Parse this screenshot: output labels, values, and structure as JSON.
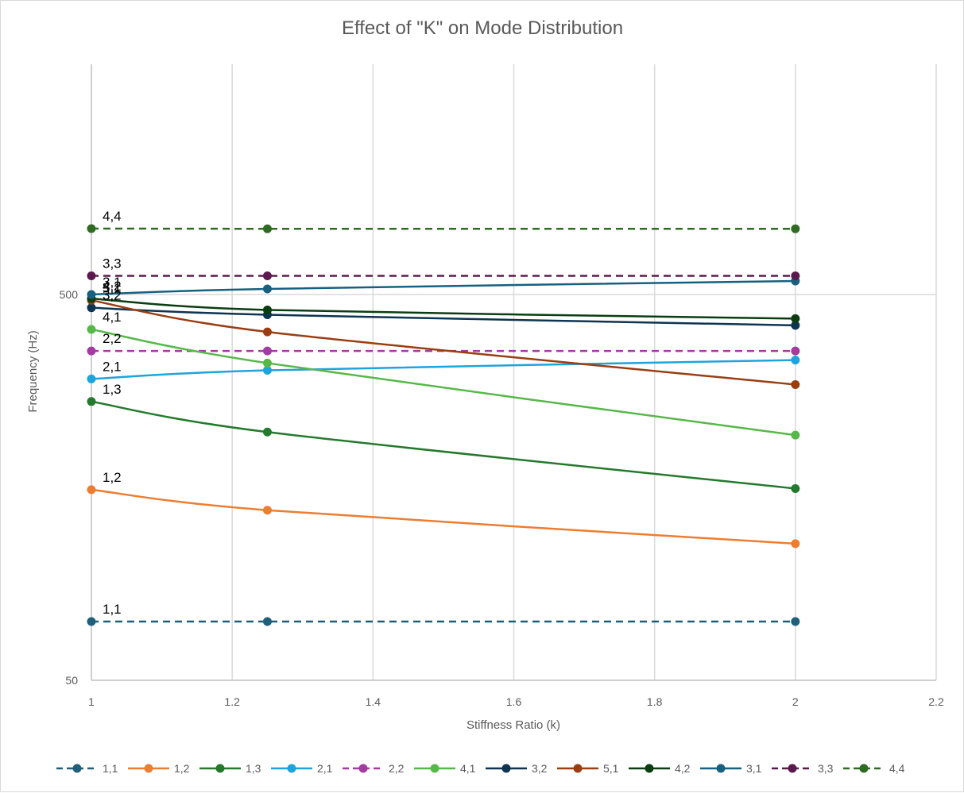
{
  "chart_data": {
    "type": "line",
    "title": "Effect of \"K\" on Mode Distribution",
    "xlabel": "Stiffness Ratio (k)",
    "ylabel": "Frequency (Hz)",
    "xlim": [
      1,
      2.2
    ],
    "x_ticks": [
      "1",
      "1.2",
      "1.4",
      "1.6",
      "1.8",
      "2",
      "2.2"
    ],
    "y_scale": "log",
    "ylim": [
      50,
      5000
    ],
    "y_ticks": [
      "50",
      "500"
    ],
    "grid": true,
    "legend_position": "bottom",
    "x": [
      1,
      1.25,
      2
    ],
    "series": [
      {
        "name": "1,1",
        "values": [
          71,
          71,
          71
        ],
        "color": "#1f5f7a",
        "dashed": true,
        "label": "1,1"
      },
      {
        "name": "1,2",
        "values": [
          156,
          138,
          113
        ],
        "color": "#ed7d31",
        "dashed": false,
        "label": "1,2"
      },
      {
        "name": "1,3",
        "values": [
          264,
          220,
          157
        ],
        "color": "#237a2c",
        "dashed": false,
        "label": "1,3"
      },
      {
        "name": "2,1",
        "values": [
          302,
          318,
          338
        ],
        "color": "#1ea4dc",
        "dashed": false,
        "label": "2,1"
      },
      {
        "name": "2,2",
        "values": [
          357,
          357,
          357
        ],
        "color": "#a33ba0",
        "dashed": true,
        "label": "2,2"
      },
      {
        "name": "4,1",
        "values": [
          406,
          332,
          216
        ],
        "color": "#57b84a",
        "dashed": false,
        "label": "4,1"
      },
      {
        "name": "3,2",
        "values": [
          462,
          443,
          416
        ],
        "color": "#0d3450",
        "dashed": false,
        "label": "3,2"
      },
      {
        "name": "5,1",
        "values": [
          483,
          400,
          292
        ],
        "color": "#9a3e12",
        "dashed": false,
        "label": "5,1"
      },
      {
        "name": "4,2",
        "values": [
          488,
          456,
          433
        ],
        "color": "#0b3d12",
        "dashed": false,
        "label": "4,2"
      },
      {
        "name": "3,1",
        "values": [
          500,
          517,
          542
        ],
        "color": "#17607f",
        "dashed": false,
        "label": "3,1"
      },
      {
        "name": "3,3",
        "values": [
          559,
          559,
          559
        ],
        "color": "#5b1a4e",
        "dashed": true,
        "label": "3,3"
      },
      {
        "name": "4,4",
        "values": [
          741,
          740,
          740
        ],
        "color": "#2f6b22",
        "dashed": true,
        "label": "4,4"
      }
    ]
  }
}
